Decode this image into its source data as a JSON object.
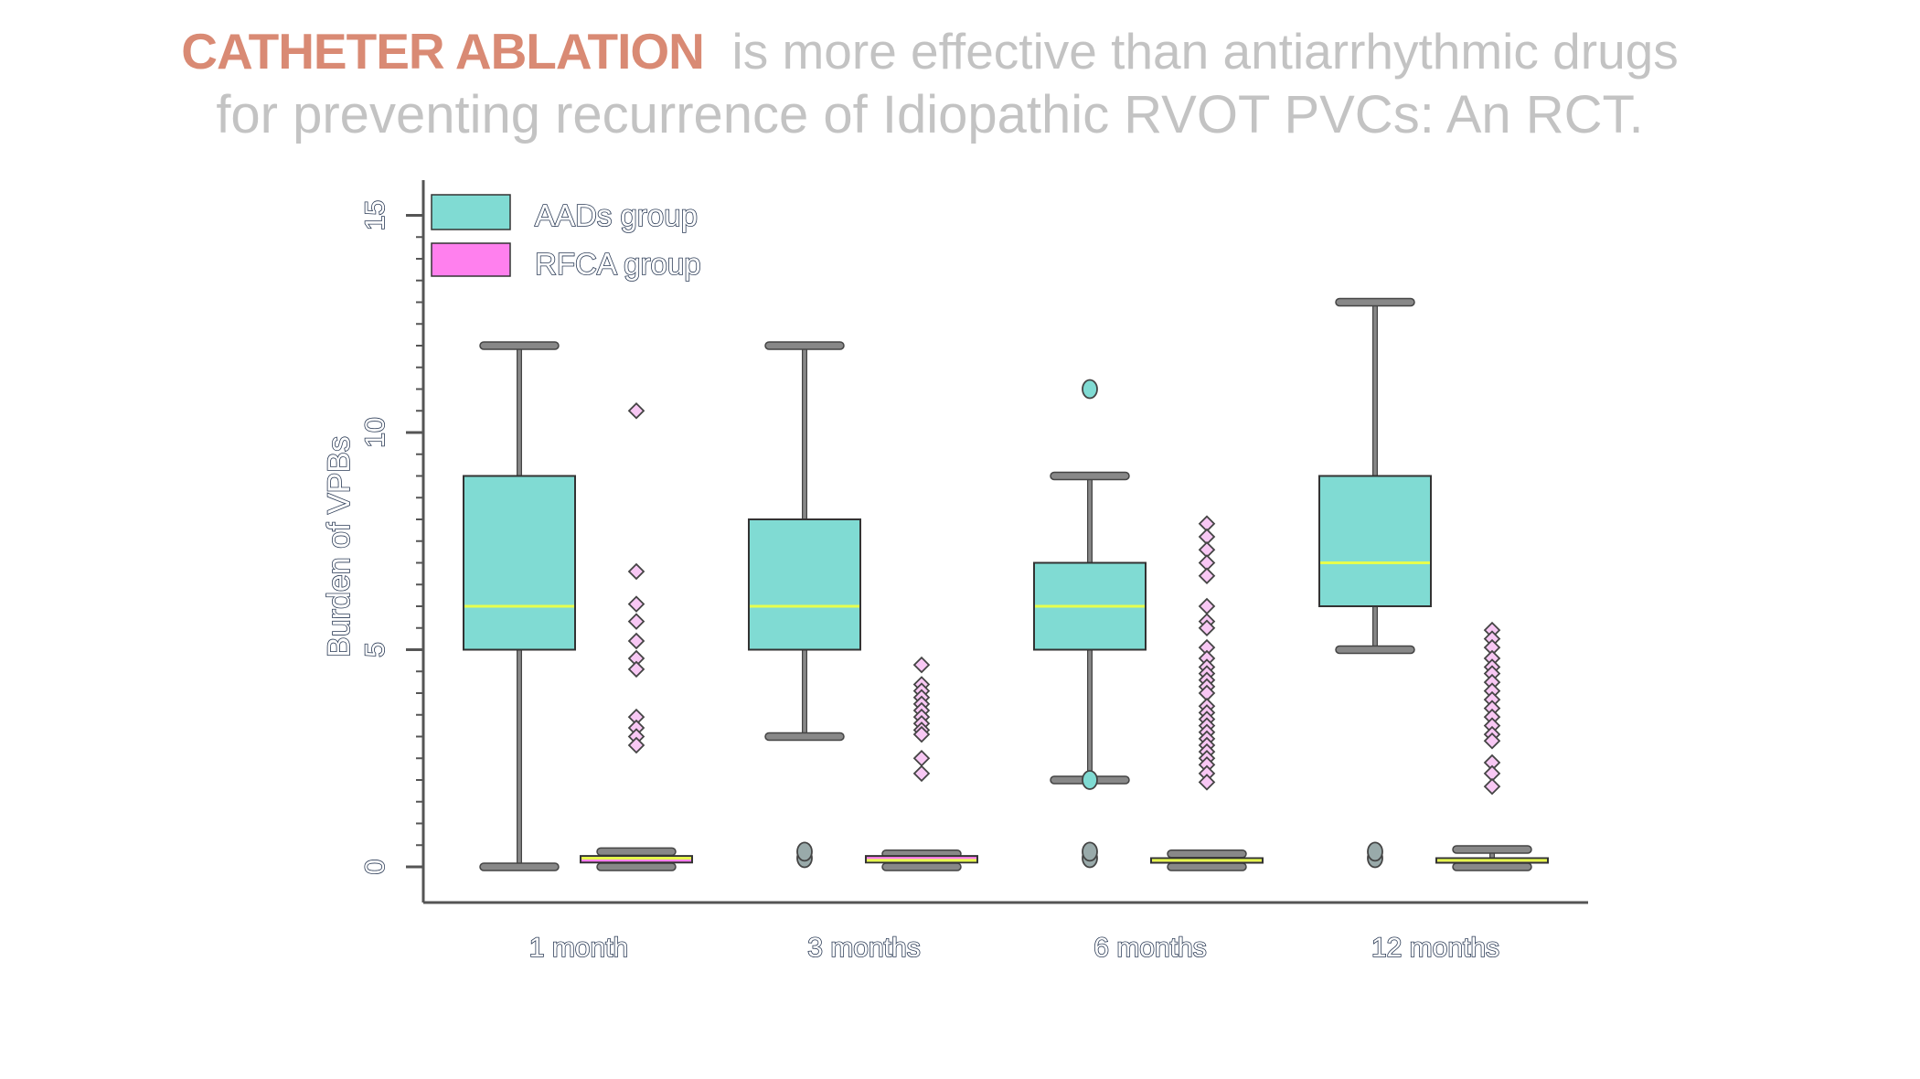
{
  "title": {
    "highlight": "CATHETER ABLATION",
    "line1_rest": "is more effective than antiarrhythmic drugs",
    "line2": "for preventing recurrence of Idiopathic RVOT PVCs: An RCT."
  },
  "colors": {
    "highlight": "#d98a74",
    "subtitle": "#c3c3c3",
    "aads_fill": "#80dbd3",
    "rfca_fill": "#ff80ee",
    "rfca_outlier": "#f8c8f4",
    "median": "#e6ff4d",
    "whisker": "#888888",
    "outline": "#333333"
  },
  "chart_data": {
    "type": "boxplot",
    "title": "",
    "xlabel": "",
    "ylabel": "Burden of VPBs",
    "ylim": [
      -1,
      16
    ],
    "yticks": [
      "0",
      "5",
      "10",
      "15"
    ],
    "yticks_values": [
      0,
      5,
      10,
      15
    ],
    "minor_tick_step": 0.5,
    "grid": false,
    "legend_position": "top-left",
    "categories": [
      "1 month",
      "3 months",
      "6 months",
      "12 months"
    ],
    "series": [
      {
        "name": "AADs group",
        "boxes": [
          {
            "whisker_low": 0,
            "q1": 5,
            "median": 6,
            "q3": 9,
            "whisker_high": 12,
            "outliers": []
          },
          {
            "whisker_low": 3,
            "q1": 5,
            "median": 6,
            "q3": 8,
            "whisker_high": 12,
            "outliers": [
              0.2,
              0.35
            ]
          },
          {
            "whisker_low": 2,
            "q1": 5,
            "median": 6,
            "q3": 7,
            "whisker_high": 9,
            "outliers": [
              11,
              2,
              0.2,
              0.35
            ]
          },
          {
            "whisker_low": 5,
            "q1": 6,
            "median": 7,
            "q3": 9,
            "whisker_high": 13,
            "outliers": [
              0.2,
              0.35
            ]
          }
        ]
      },
      {
        "name": "RFCA group",
        "boxes": [
          {
            "whisker_low": 0,
            "q1": 0.1,
            "median": 0.2,
            "q3": 0.25,
            "whisker_high": 0.35,
            "outliers": [
              10.5,
              6.8,
              6.05,
              5.65,
              5.2,
              4.8,
              4.55,
              3.45,
              3.2,
              3.0,
              2.8
            ]
          },
          {
            "whisker_low": 0,
            "q1": 0.1,
            "median": 0.15,
            "q3": 0.25,
            "whisker_high": 0.3,
            "outliers": [
              4.65,
              4.2,
              4.05,
              3.9,
              3.75,
              3.6,
              3.45,
              3.3,
              3.15,
              3.05,
              2.5,
              2.15
            ]
          },
          {
            "whisker_low": 0,
            "q1": 0.1,
            "median": 0.15,
            "q3": 0.2,
            "whisker_high": 0.3,
            "outliers": [
              7.9,
              7.6,
              7.3,
              7.0,
              6.7,
              6.0,
              5.65,
              5.5,
              5.05,
              4.8,
              4.6,
              4.45,
              4.3,
              4.15,
              4.0,
              3.7,
              3.55,
              3.4,
              3.25,
              3.1,
              2.95,
              2.8,
              2.65,
              2.5,
              2.35,
              2.15,
              1.95
            ]
          },
          {
            "whisker_low": 0,
            "q1": 0.1,
            "median": 0.15,
            "q3": 0.2,
            "whisker_high": 0.4,
            "outliers": [
              5.45,
              5.25,
              5.05,
              4.8,
              4.6,
              4.45,
              4.25,
              4.05,
              3.85,
              3.65,
              3.45,
              3.25,
              3.05,
              2.9,
              2.4,
              2.15,
              1.85
            ]
          }
        ]
      }
    ]
  }
}
